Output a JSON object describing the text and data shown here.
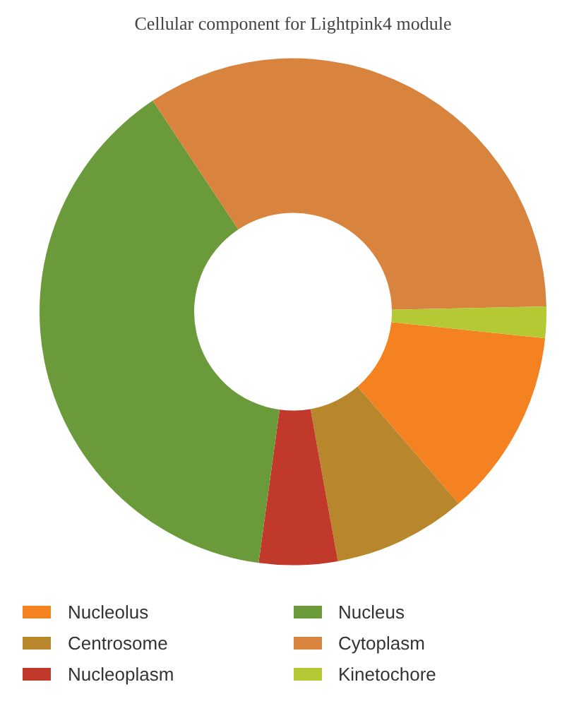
{
  "chart_data": {
    "type": "donut",
    "title": "Cellular component for Lightpink4 module",
    "categories": [
      "Nucleolus",
      "Centrosome",
      "Nucleoplasm",
      "Nucleus",
      "Cytoplasm",
      "Kinetochore"
    ],
    "values": [
      12,
      8.5,
      5,
      38.5,
      34,
      2
    ],
    "colors": [
      "#f58220",
      "#b8862b",
      "#c0392b",
      "#6a9a3a",
      "#d9843e",
      "#b5c934"
    ],
    "legend": "bottom"
  }
}
